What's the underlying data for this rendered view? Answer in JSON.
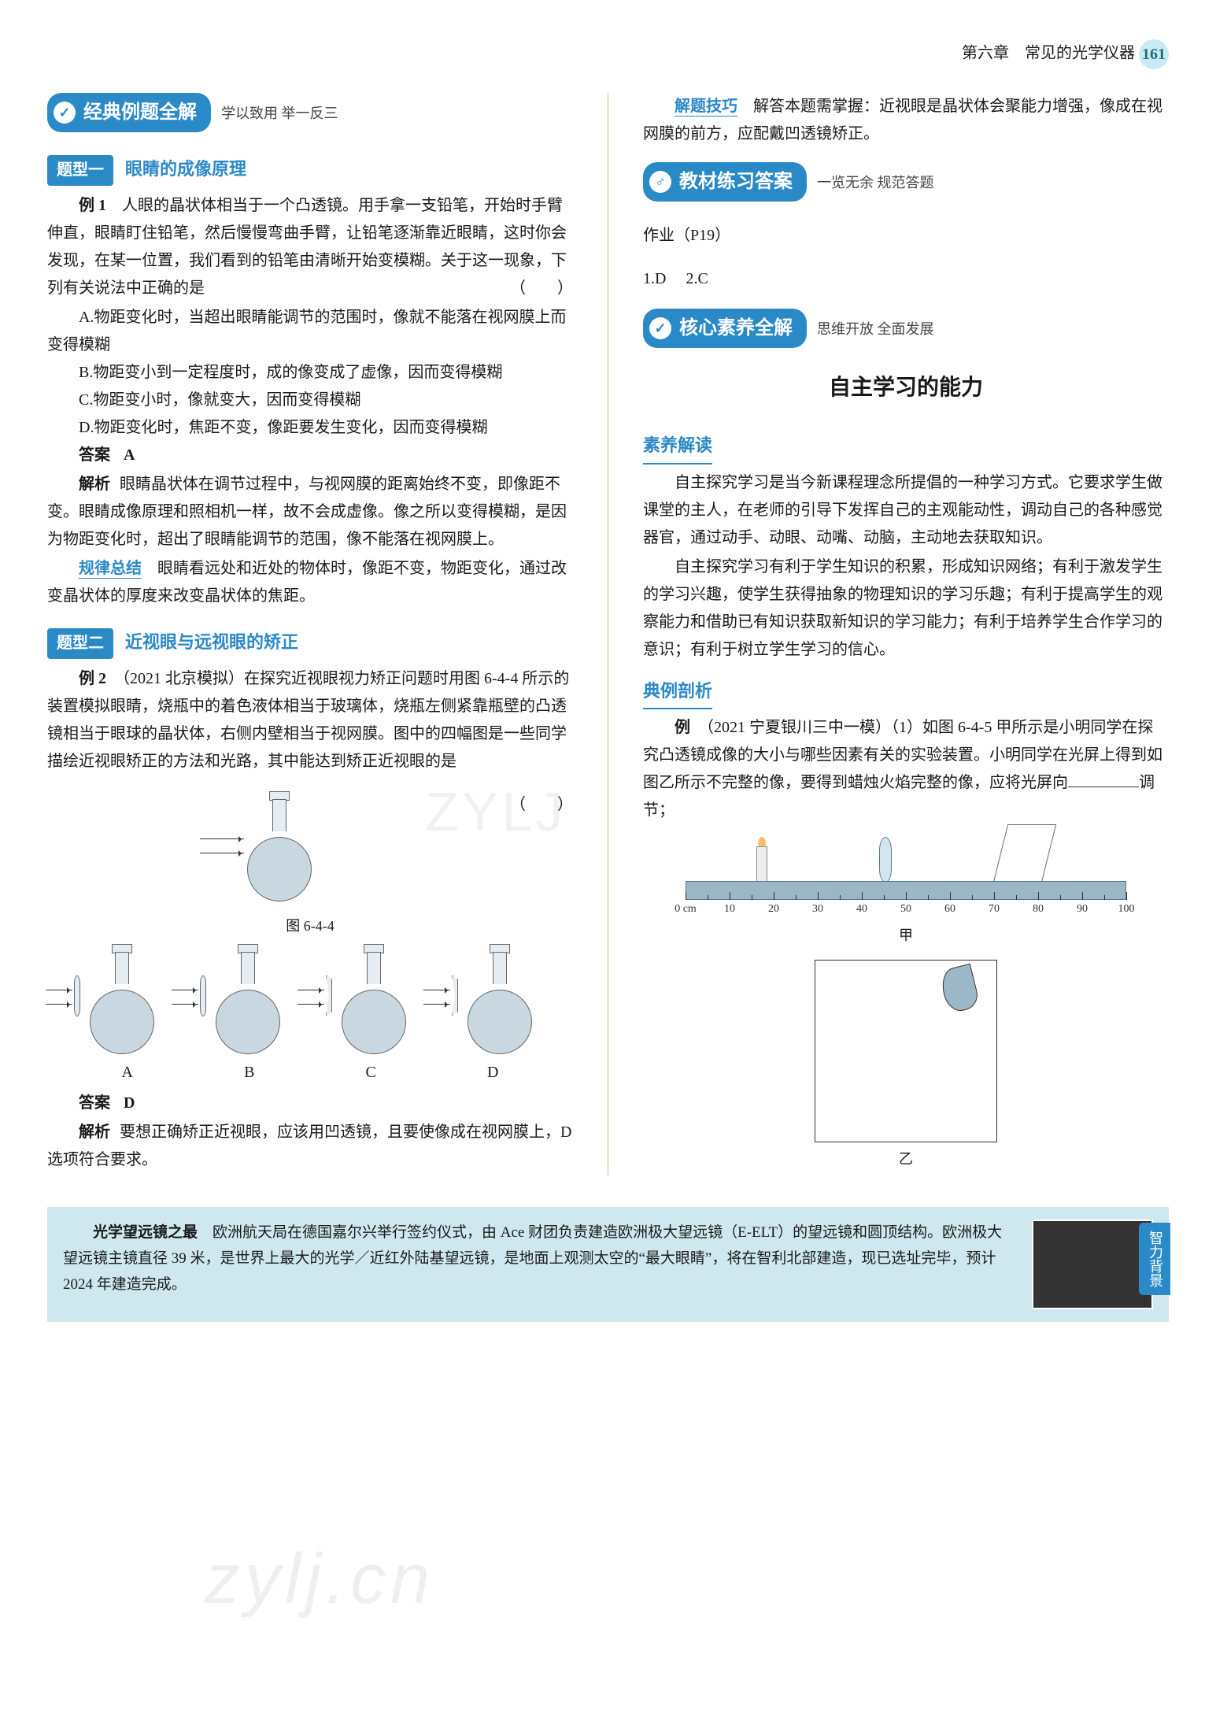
{
  "header": {
    "chapter": "第六章　常见的光学仪器",
    "page": "161"
  },
  "left": {
    "badgeTitle": "经典例题全解",
    "badgeSub": "学以致用 举一反三",
    "topic1": {
      "label": "题型一",
      "title": "眼睛的成像原理",
      "ex_label": "例 1",
      "stem": "人眼的晶状体相当于一个凸透镜。用手拿一支铅笔，开始时手臂伸直，眼睛盯住铅笔，然后慢慢弯曲手臂，让铅笔逐渐靠近眼睛，这时你会发现，在某一位置，我们看到的铅笔由清晰开始变模糊。关于这一现象，下列有关说法中正确的是",
      "optA": "A.物距变化时，当超出眼睛能调节的范围时，像就不能落在视网膜上而变得模糊",
      "optB": "B.物距变小到一定程度时，成的像变成了虚像，因而变得模糊",
      "optC": "C.物距变小时，像就变大，因而变得模糊",
      "optD": "D.物距变化时，焦距不变，像距要发生变化，因而变得模糊",
      "ans_label": "答案",
      "ans": "A",
      "exp_label": "解析",
      "exp": "眼睛晶状体在调节过程中，与视网膜的距离始终不变，即像距不变。眼睛成像原理和照相机一样，故不会成虚像。像之所以变得模糊，是因为物距变化时，超出了眼睛能调节的范围，像不能落在视网膜上。",
      "rule_label": "规律总结",
      "rule": "眼睛看远处和近处的物体时，像距不变，物距变化，通过改变晶状体的厚度来改变晶状体的焦距。"
    },
    "topic2": {
      "label": "题型二",
      "title": "近视眼与远视眼的矫正",
      "ex_label": "例 2",
      "stem": "（2021 北京模拟）在探究近视眼视力矫正问题时用图 6-4-4 所示的装置模拟眼睛，烧瓶中的着色液体相当于玻璃体，烧瓶左侧紧靠瓶壁的凸透镜相当于眼球的晶状体，右侧内壁相当于视网膜。图中的四幅图是一些同学描绘近视眼矫正的方法和光路，其中能达到矫正近视眼的是",
      "fig_label": "图 6-4-4",
      "opts": {
        "A": "A",
        "B": "B",
        "C": "C",
        "D": "D"
      },
      "ans_label": "答案",
      "ans": "D",
      "exp_label": "解析",
      "exp": "要想正确矫正近视眼，应该用凹透镜，且要使像成在视网膜上，D 选项符合要求。"
    }
  },
  "right": {
    "tip_label": "解题技巧",
    "tip": "解答本题需掌握：近视眼是晶状体会聚能力增强，像成在视网膜的前方，应配戴凹透镜矫正。",
    "textbook": {
      "badgeTitle": "教材练习答案",
      "badgeSub": "一览无余 规范答题",
      "hw_label": "作业（P19）",
      "ans1": "1.D",
      "ans2": "2.C"
    },
    "core": {
      "badgeTitle": "核心素养全解",
      "badgeSub": "思维开放 全面发展",
      "bigTitle": "自主学习的能力",
      "sec1": "素养解读",
      "p1": "自主探究学习是当今新课程理念所提倡的一种学习方式。它要求学生做课堂的主人，在老师的引导下发挥自己的主观能动性，调动自己的各种感觉器官，通过动手、动眼、动嘴、动脑，主动地去获取知识。",
      "p2": "自主探究学习有利于学生知识的积累，形成知识网络；有利于激发学生的学习兴趣，使学生获得抽象的物理知识的学习乐趣；有利于提高学生的观察能力和借助已有知识获取新知识的学习能力；有利于培养学生合作学习的意识；有利于树立学生学习的信心。",
      "sec2": "典例剖析",
      "ex_label": "例",
      "stem1": "（2021 宁夏银川三中一模）（1）如图 6-4-5 甲所示是小明同学在探究凸透镜成像的大小与哪些因素有关的实验装置。小明同学在光屏上得到如图乙所示不完整的像，要得到蜡烛火焰完整的像，应将光屏向",
      "stem2": "调节；",
      "fig1": "甲",
      "fig2": "乙",
      "ruler_labels": [
        "0 cm",
        "10",
        "20",
        "30",
        "40",
        "50",
        "60",
        "70",
        "80",
        "90",
        "100"
      ]
    }
  },
  "footer": {
    "title": "光学望远镜之最",
    "body": "欧洲航天局在德国嘉尔兴举行签约仪式，由 Ace 财团负责建造欧洲极大望远镜（E-ELT）的望远镜和圆顶结构。欧洲极大望远镜主镜直径 39 米，是世界上最大的光学／近红外陆基望远镜，是地面上观测太空的“最大眼睛”，将在智利北部建造，现已选址完毕，预计 2024 年建造完成。",
    "sideLabel": "智力背景"
  },
  "watermark1": "zylj.cn",
  "watermark2": "ZYLJ"
}
